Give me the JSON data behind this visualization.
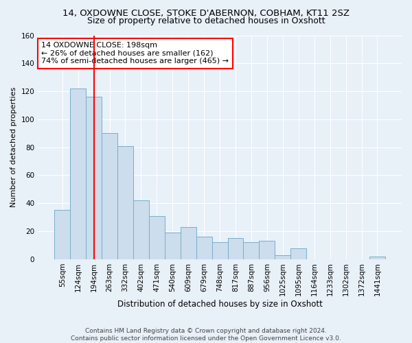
{
  "title": "14, OXDOWNE CLOSE, STOKE D'ABERNON, COBHAM, KT11 2SZ",
  "subtitle": "Size of property relative to detached houses in Oxshott",
  "xlabel": "Distribution of detached houses by size in Oxshott",
  "ylabel": "Number of detached properties",
  "bar_labels": [
    "55sqm",
    "124sqm",
    "194sqm",
    "263sqm",
    "332sqm",
    "402sqm",
    "471sqm",
    "540sqm",
    "609sqm",
    "679sqm",
    "748sqm",
    "817sqm",
    "887sqm",
    "956sqm",
    "1025sqm",
    "1095sqm",
    "1164sqm",
    "1233sqm",
    "1302sqm",
    "1372sqm",
    "1441sqm"
  ],
  "bar_values": [
    35,
    122,
    116,
    90,
    81,
    42,
    31,
    19,
    23,
    16,
    12,
    15,
    12,
    13,
    3,
    8,
    0,
    0,
    0,
    0,
    2
  ],
  "bar_color": "#ccdded",
  "bar_edgecolor": "#7aaec8",
  "vline_x": 2.0,
  "vline_color": "red",
  "annotation_line1": "14 OXDOWNE CLOSE: 198sqm",
  "annotation_line2": "← 26% of detached houses are smaller (162)",
  "annotation_line3": "74% of semi-detached houses are larger (465) →",
  "annotation_box_color": "white",
  "annotation_box_edgecolor": "red",
  "ylim": [
    0,
    160
  ],
  "yticks": [
    0,
    20,
    40,
    60,
    80,
    100,
    120,
    140,
    160
  ],
  "footer1": "Contains HM Land Registry data © Crown copyright and database right 2024.",
  "footer2": "Contains public sector information licensed under the Open Government Licence v3.0.",
  "bg_color": "#e8f0f8",
  "grid_color": "white",
  "title_fontsize": 9.5,
  "subtitle_fontsize": 9,
  "xlabel_fontsize": 8.5,
  "ylabel_fontsize": 8,
  "tick_fontsize": 7.5,
  "footer_fontsize": 6.5,
  "annotation_fontsize": 8
}
